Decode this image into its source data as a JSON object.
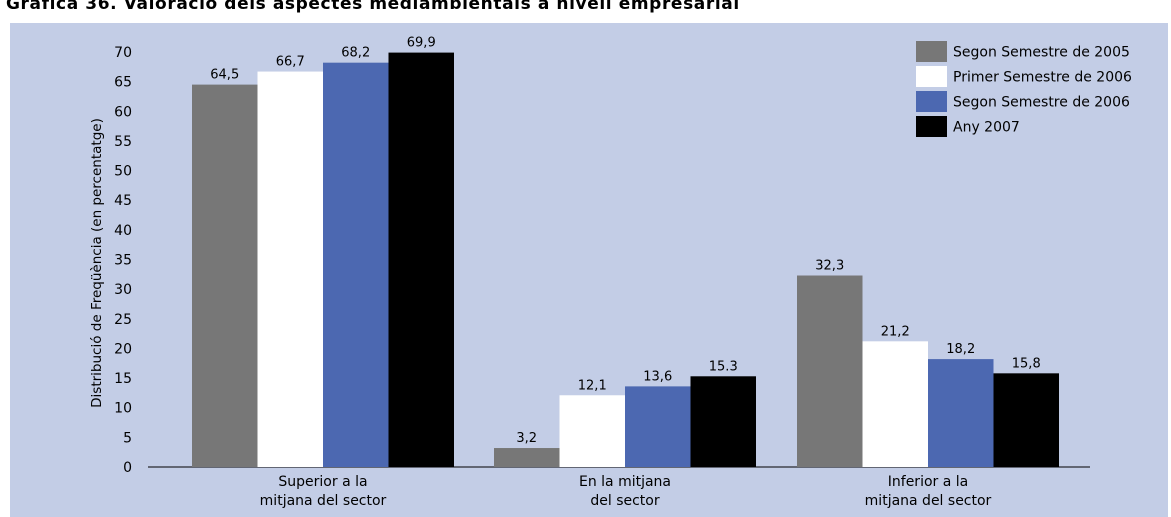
{
  "title": "Gràfica 36. Valoració dels aspectes mediambientals a nivell empresarial",
  "chart_data": {
    "type": "bar",
    "categories": [
      [
        "Superior a la",
        "mitjana del sector"
      ],
      [
        "En la mitjana",
        "del sector"
      ],
      [
        "Inferior a la",
        "mitjana del sector"
      ]
    ],
    "series": [
      {
        "name": "Segon Semestre de 2005",
        "color": "#777777",
        "values": [
          64.5,
          3.2,
          32.3
        ],
        "labels": [
          "64,5",
          "3,2",
          "32,3"
        ]
      },
      {
        "name": "Primer Semestre de 2006",
        "color": "#ffffff",
        "values": [
          66.7,
          12.1,
          21.2
        ],
        "labels": [
          "66,7",
          "12,1",
          "21,2"
        ]
      },
      {
        "name": "Segon Semestre de 2006",
        "color": "#4c68b1",
        "values": [
          68.2,
          13.6,
          18.2
        ],
        "labels": [
          "68,2",
          "13,6",
          "18,2"
        ]
      },
      {
        "name": "Any 2007",
        "color": "#000000",
        "values": [
          69.9,
          15.3,
          15.8
        ],
        "labels": [
          "69,9",
          "15.3",
          "15,8"
        ]
      }
    ],
    "ylabel": "Distribució de Freqüència  (en percentatge)",
    "yticks": [
      "0",
      "5",
      "10",
      "15",
      "20",
      "25",
      "30",
      "35",
      "40",
      "45",
      "50",
      "55",
      "60",
      "65",
      "70"
    ],
    "ylim": [
      0,
      70
    ],
    "grid": false,
    "legend_position": "top-right"
  }
}
